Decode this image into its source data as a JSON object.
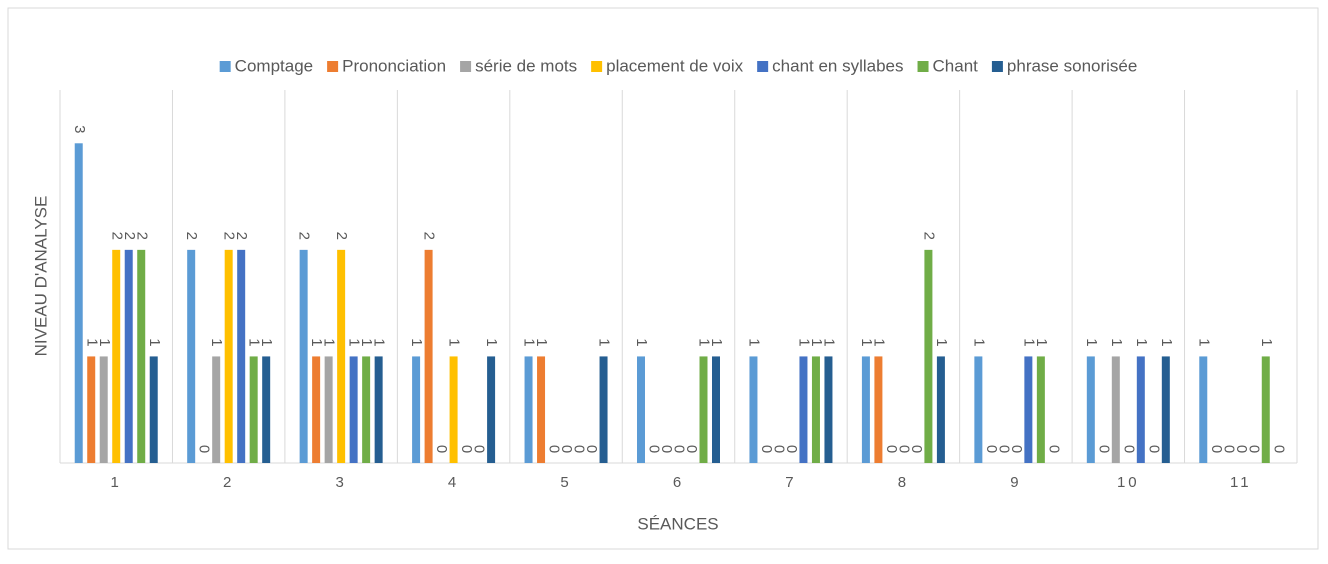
{
  "chart_data": {
    "type": "bar",
    "x_label": "SÉANCES",
    "y_label": "NIVEAU D'ANALYSE",
    "categories": [
      "1",
      "2",
      "3",
      "4",
      "5",
      "6",
      "7",
      "8",
      "9",
      "10",
      "11"
    ],
    "series": [
      {
        "name": "Comptage",
        "color": "#5b9bd5",
        "values": [
          3,
          2,
          2,
          1,
          1,
          1,
          1,
          1,
          1,
          1,
          1
        ]
      },
      {
        "name": "Prononciation",
        "color": "#ed7d31",
        "values": [
          1,
          0,
          1,
          2,
          1,
          0,
          0,
          1,
          0,
          0,
          0
        ]
      },
      {
        "name": "série de mots",
        "color": "#a5a5a5",
        "values": [
          1,
          1,
          1,
          0,
          0,
          0,
          0,
          0,
          0,
          1,
          0
        ]
      },
      {
        "name": "placement de voix",
        "color": "#ffc000",
        "values": [
          2,
          2,
          2,
          1,
          0,
          0,
          0,
          0,
          0,
          0,
          0
        ]
      },
      {
        "name": "chant en syllabes",
        "color": "#4472c4",
        "values": [
          2,
          2,
          1,
          0,
          0,
          0,
          1,
          0,
          1,
          1,
          0
        ]
      },
      {
        "name": "Chant",
        "color": "#70ad47",
        "values": [
          2,
          1,
          1,
          0,
          0,
          1,
          1,
          2,
          1,
          0,
          1
        ]
      },
      {
        "name": "phrase sonorisée",
        "color": "#255e91",
        "values": [
          1,
          1,
          1,
          1,
          1,
          1,
          1,
          1,
          0,
          1,
          0
        ]
      }
    ],
    "ylim": [
      0,
      3.5
    ],
    "grid": true,
    "legend": "top"
  }
}
